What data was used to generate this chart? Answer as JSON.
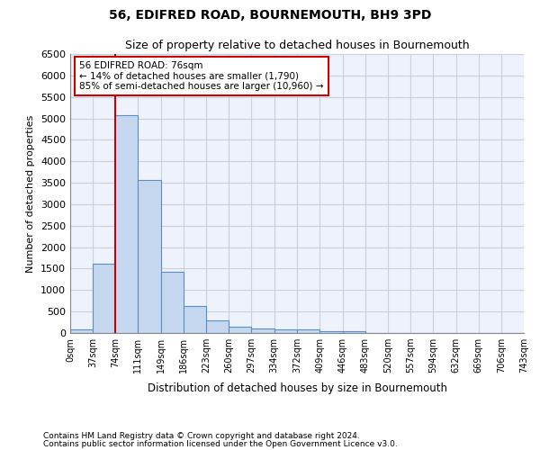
{
  "title": "56, EDIFRED ROAD, BOURNEMOUTH, BH9 3PD",
  "subtitle": "Size of property relative to detached houses in Bournemouth",
  "xlabel": "Distribution of detached houses by size in Bournemouth",
  "ylabel": "Number of detached properties",
  "footnote1": "Contains HM Land Registry data © Crown copyright and database right 2024.",
  "footnote2": "Contains public sector information licensed under the Open Government Licence v3.0.",
  "bin_edges": [
    0,
    37,
    74,
    111,
    149,
    186,
    223,
    260,
    297,
    334,
    372,
    409,
    446,
    483,
    520,
    557,
    594,
    632,
    669,
    706,
    743
  ],
  "bar_heights": [
    75,
    1625,
    5075,
    3575,
    1425,
    625,
    300,
    150,
    100,
    75,
    75,
    50,
    50,
    0,
    0,
    0,
    0,
    0,
    0,
    0
  ],
  "bar_color": "#c5d8f0",
  "bar_edge_color": "#5a8fc2",
  "plot_bg_color": "#eef2fa",
  "fig_bg_color": "#ffffff",
  "grid_color": "#c8d0e0",
  "annotation_text_line1": "56 EDIFRED ROAD: 76sqm",
  "annotation_text_line2": "← 14% of detached houses are smaller (1,790)",
  "annotation_text_line3": "85% of semi-detached houses are larger (10,960) →",
  "annotation_box_color": "#ffffff",
  "annotation_box_edge_color": "#cc0000",
  "property_line_x": 74,
  "property_line_color": "#cc0000",
  "ylim": [
    0,
    6500
  ],
  "yticks": [
    0,
    500,
    1000,
    1500,
    2000,
    2500,
    3000,
    3500,
    4000,
    4500,
    5000,
    5500,
    6000,
    6500
  ],
  "tick_labels": [
    "0sqm",
    "37sqm",
    "74sqm",
    "111sqm",
    "149sqm",
    "186sqm",
    "223sqm",
    "260sqm",
    "297sqm",
    "334sqm",
    "372sqm",
    "409sqm",
    "446sqm",
    "483sqm",
    "520sqm",
    "557sqm",
    "594sqm",
    "632sqm",
    "669sqm",
    "706sqm",
    "743sqm"
  ]
}
